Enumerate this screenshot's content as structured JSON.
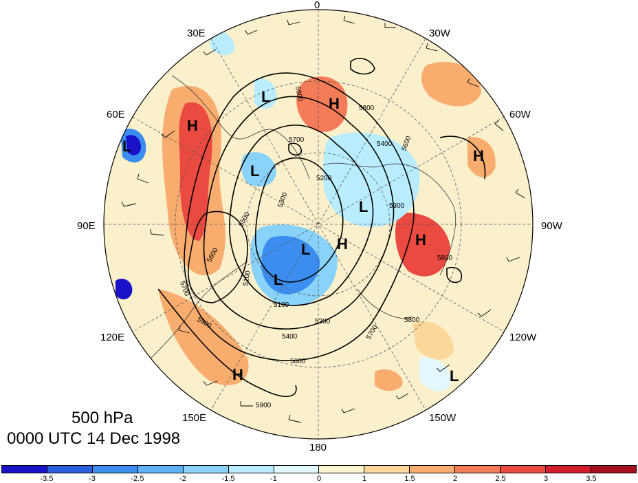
{
  "title": {
    "level": "500 hPa",
    "time": "0000 UTC 14 Dec 1998"
  },
  "longitude_labels": [
    "0",
    "30W",
    "60W",
    "90W",
    "120W",
    "150W",
    "180",
    "150E",
    "120E",
    "90E",
    "60E",
    "30E"
  ],
  "pressure_centers": [
    "L",
    "H",
    "H",
    "L",
    "H",
    "L",
    "H",
    "L",
    "H",
    "L",
    "L",
    "H",
    "L"
  ],
  "contour_labels": [
    "5800",
    "5800",
    "5700",
    "5600",
    "5400",
    "5200",
    "5300",
    "5300",
    "5500",
    "5600",
    "5700",
    "5800",
    "5900",
    "5900",
    "5100",
    "5100",
    "5200",
    "5400",
    "5600",
    "5700",
    "5800"
  ],
  "colorbar": {
    "colors": [
      "#1a12c8",
      "#2a5fe0",
      "#3b8ef0",
      "#5fb2f5",
      "#89d2fa",
      "#b9ecfc",
      "#e3f8fd",
      "#fdf5cf",
      "#fbd79a",
      "#f8ad6f",
      "#f47c58",
      "#ea4a3f",
      "#d41e2c",
      "#a50f1e"
    ],
    "ticks": [
      "-3.5",
      "-3",
      "-2.5",
      "-2",
      "-1.5",
      "-1",
      "0",
      "1",
      "1.5",
      "2",
      "2.5",
      "3",
      "3.5"
    ]
  }
}
